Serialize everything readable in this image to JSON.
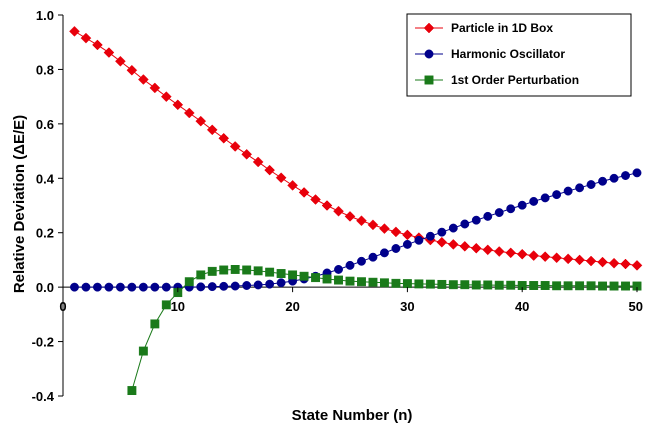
{
  "chart_data": {
    "type": "scatter",
    "title": "",
    "xlabel": "State Number (n)",
    "ylabel": "Relative Deviation (ΔE/E)",
    "xlim": [
      0,
      50
    ],
    "ylim": [
      -0.4,
      1.0
    ],
    "x_ticks": [
      {
        "value": 0,
        "label": "0"
      },
      {
        "value": 10,
        "label": "10"
      },
      {
        "value": 20,
        "label": "20"
      },
      {
        "value": 30,
        "label": "30"
      },
      {
        "value": 40,
        "label": "40"
      },
      {
        "value": 50,
        "label": "50"
      }
    ],
    "y_ticks": [
      {
        "value": 1.0,
        "label": "1.0"
      },
      {
        "value": 0.8,
        "label": "0.8"
      },
      {
        "value": 0.6,
        "label": "0.6"
      },
      {
        "value": 0.4,
        "label": "0.4"
      },
      {
        "value": 0.2,
        "label": "0.2"
      },
      {
        "value": 0.0,
        "label": "0.0"
      },
      {
        "value": -0.2,
        "label": "-0.2"
      },
      {
        "value": -0.4,
        "label": "-0.4"
      }
    ],
    "grid": false,
    "legend_position": "top-right",
    "series": [
      {
        "name": "Particle in 1D Box",
        "marker": "diamond",
        "color": "#e8000b",
        "x": [
          1,
          2,
          3,
          4,
          5,
          6,
          7,
          8,
          9,
          10,
          11,
          12,
          13,
          14,
          15,
          16,
          17,
          18,
          19,
          20,
          21,
          22,
          23,
          24,
          25,
          26,
          27,
          28,
          29,
          30,
          31,
          32,
          33,
          34,
          35,
          36,
          37,
          38,
          39,
          40,
          41,
          42,
          43,
          44,
          45,
          46,
          47,
          48,
          49,
          50
        ],
        "y": [
          0.94,
          0.915,
          0.89,
          0.862,
          0.83,
          0.797,
          0.763,
          0.732,
          0.7,
          0.67,
          0.64,
          0.61,
          0.578,
          0.547,
          0.517,
          0.488,
          0.46,
          0.43,
          0.402,
          0.374,
          0.348,
          0.322,
          0.3,
          0.279,
          0.26,
          0.244,
          0.229,
          0.215,
          0.203,
          0.192,
          0.182,
          0.173,
          0.165,
          0.157,
          0.15,
          0.143,
          0.137,
          0.131,
          0.126,
          0.121,
          0.116,
          0.112,
          0.108,
          0.104,
          0.1,
          0.096,
          0.092,
          0.088,
          0.085,
          0.08
        ]
      },
      {
        "name": "Harmonic Oscillator",
        "marker": "circle",
        "color": "#00008b",
        "x": [
          1,
          2,
          3,
          4,
          5,
          6,
          7,
          8,
          9,
          10,
          11,
          12,
          13,
          14,
          15,
          16,
          17,
          18,
          19,
          20,
          21,
          22,
          23,
          24,
          25,
          26,
          27,
          28,
          29,
          30,
          31,
          32,
          33,
          34,
          35,
          36,
          37,
          38,
          39,
          40,
          41,
          42,
          43,
          44,
          45,
          46,
          47,
          48,
          49,
          50
        ],
        "y": [
          0.0,
          0.0,
          0.0,
          0.0,
          0.0,
          0.0,
          0.0,
          0.0,
          0.0,
          0.0,
          0.0,
          0.001,
          0.002,
          0.003,
          0.004,
          0.006,
          0.008,
          0.011,
          0.016,
          0.022,
          0.03,
          0.04,
          0.052,
          0.065,
          0.08,
          0.095,
          0.11,
          0.126,
          0.142,
          0.157,
          0.172,
          0.187,
          0.202,
          0.217,
          0.232,
          0.246,
          0.26,
          0.274,
          0.288,
          0.301,
          0.315,
          0.328,
          0.34,
          0.353,
          0.365,
          0.377,
          0.389,
          0.4,
          0.41,
          0.42
        ]
      },
      {
        "name": "1st Order Perturbation",
        "marker": "square",
        "color": "#1a7a1a",
        "x": [
          6,
          7,
          8,
          9,
          10,
          11,
          12,
          13,
          14,
          15,
          16,
          17,
          18,
          19,
          20,
          21,
          22,
          23,
          24,
          25,
          26,
          27,
          28,
          29,
          30,
          31,
          32,
          33,
          34,
          35,
          36,
          37,
          38,
          39,
          40,
          41,
          42,
          43,
          44,
          45,
          46,
          47,
          48,
          49,
          50
        ],
        "y": [
          -0.38,
          -0.235,
          -0.135,
          -0.065,
          -0.02,
          0.02,
          0.045,
          0.058,
          0.063,
          0.065,
          0.063,
          0.06,
          0.055,
          0.05,
          0.045,
          0.04,
          0.035,
          0.03,
          0.026,
          0.022,
          0.02,
          0.018,
          0.016,
          0.014,
          0.013,
          0.012,
          0.011,
          0.01,
          0.009,
          0.009,
          0.008,
          0.008,
          0.007,
          0.007,
          0.006,
          0.006,
          0.006,
          0.005,
          0.005,
          0.005,
          0.005,
          0.004,
          0.004,
          0.004,
          0.004
        ]
      }
    ]
  }
}
